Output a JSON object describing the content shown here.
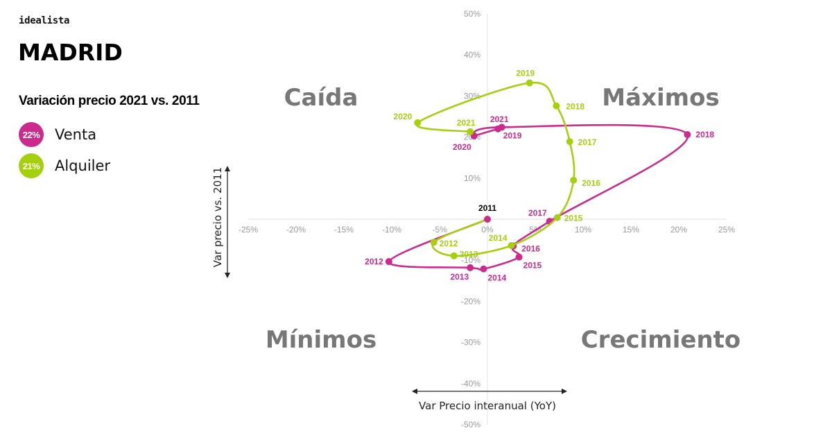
{
  "header": {
    "brand": "idealista",
    "city": "MADRID",
    "subtitle": "Variación precio 2021 vs. 2011"
  },
  "legend": [
    {
      "badge": "22%",
      "label": "Venta",
      "color": "#cc2a8c"
    },
    {
      "badge": "21%",
      "label": "Alquiler",
      "color": "#a6cf10"
    }
  ],
  "colors": {
    "venta": "#cc2a8c",
    "alquiler": "#a6cf10",
    "origin": "#000000",
    "grid": "#e2e2e2",
    "tick": "#999999",
    "quadrant": "#777777"
  },
  "chart_data": {
    "type": "scatter",
    "connected": true,
    "xlabel": "Var Precio interanual (YoY)",
    "ylabel": "Var precio vs. 2011",
    "xlim": [
      -25,
      25
    ],
    "ylim": [
      -50,
      50
    ],
    "x_ticks": [
      "-25%",
      "-20%",
      "-15%",
      "-10%",
      "-5%",
      "0%",
      "5%",
      "10%",
      "15%",
      "20%",
      "25%"
    ],
    "y_ticks": [
      "50%",
      "40%",
      "30%",
      "20%",
      "10%",
      "-10%",
      "-20%",
      "-30%",
      "-40%",
      "-50%"
    ],
    "quadrants": {
      "top_left": "Caída",
      "top_right": "Máximos",
      "bottom_left": "Mínimos",
      "bottom_right": "Crecimiento"
    },
    "origin": {
      "label": "2011",
      "x": 0,
      "y": 0
    },
    "series": [
      {
        "name": "Venta",
        "color_key": "venta",
        "points": [
          {
            "label": "2011",
            "x": 0.0,
            "y": 0.0
          },
          {
            "label": "2012",
            "x": -10.3,
            "y": -10.3
          },
          {
            "label": "2013",
            "x": -1.8,
            "y": -11.8
          },
          {
            "label": "2014",
            "x": -0.4,
            "y": -12.1
          },
          {
            "label": "2015",
            "x": 3.3,
            "y": -9.2
          },
          {
            "label": "2016",
            "x": 2.7,
            "y": -6.5
          },
          {
            "label": "2017",
            "x": 6.5,
            "y": -0.5
          },
          {
            "label": "2018",
            "x": 20.9,
            "y": 20.6
          },
          {
            "label": "2019",
            "x": 1.5,
            "y": 22.4
          },
          {
            "label": "2020",
            "x": -1.4,
            "y": 20.3
          },
          {
            "label": "2021",
            "x": 1.1,
            "y": 22.0
          }
        ]
      },
      {
        "name": "Alquiler",
        "color_key": "alquiler",
        "points": [
          {
            "label": "2011",
            "x": 0.0,
            "y": 0.0
          },
          {
            "label": "2012",
            "x": -5.6,
            "y": -5.6
          },
          {
            "label": "2013",
            "x": -3.5,
            "y": -8.9
          },
          {
            "label": "2014",
            "x": 2.5,
            "y": -6.4
          },
          {
            "label": "2015",
            "x": 7.3,
            "y": 0.4
          },
          {
            "label": "2016",
            "x": 9.0,
            "y": 9.5
          },
          {
            "label": "2017",
            "x": 8.6,
            "y": 18.9
          },
          {
            "label": "2018",
            "x": 7.2,
            "y": 27.6
          },
          {
            "label": "2019",
            "x": 4.4,
            "y": 33.2
          },
          {
            "label": "2020",
            "x": -7.3,
            "y": 23.5
          },
          {
            "label": "2021",
            "x": -1.8,
            "y": 21.3
          }
        ]
      }
    ]
  }
}
